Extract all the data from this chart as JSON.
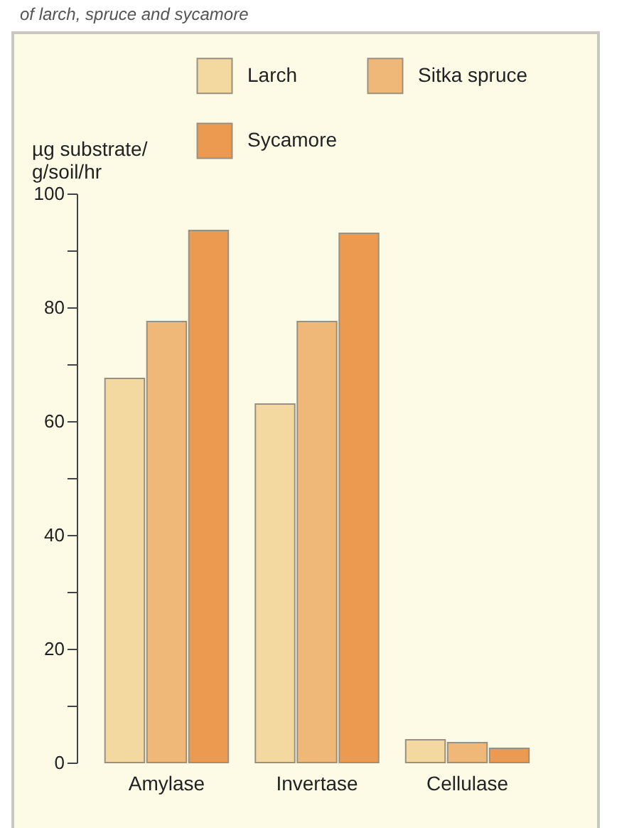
{
  "chart_data": {
    "type": "bar",
    "title": "of larch, spruce and sycamore",
    "ylabel": "µg substrate/\ng/soil/hr",
    "categories": [
      "Amylase",
      "Invertase",
      "Cellulase"
    ],
    "series": [
      {
        "name": "Larch",
        "color": "#f3d9a0",
        "values": [
          67.5,
          63,
          4
        ]
      },
      {
        "name": "Sitka spruce",
        "color": "#f0b878",
        "values": [
          77.5,
          77.5,
          3.5
        ]
      },
      {
        "name": "Sycamore",
        "color": "#eb9a50",
        "values": [
          93.5,
          93,
          2.5
        ]
      }
    ],
    "ylim": [
      0,
      100
    ],
    "yticks": [
      0,
      {
        "value": 10,
        "label": null
      },
      20,
      {
        "value": 30,
        "label": null
      },
      40,
      {
        "value": 50,
        "label": null
      },
      60,
      {
        "value": 70,
        "label": null
      },
      80,
      {
        "value": 90,
        "label": null
      },
      100
    ],
    "grid": false,
    "legend": "top right"
  }
}
